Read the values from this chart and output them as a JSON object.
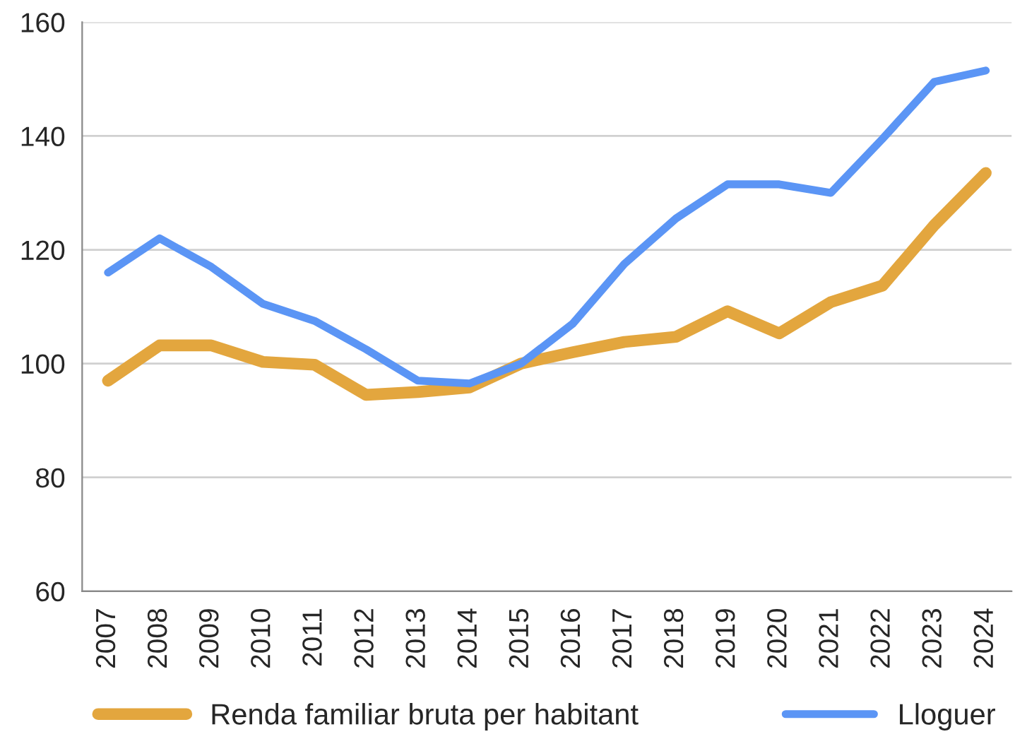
{
  "chart_data": {
    "type": "line",
    "categories": [
      "2007",
      "2008",
      "2009",
      "2010",
      "2011",
      "2012",
      "2013",
      "2014",
      "2015",
      "2016",
      "2017",
      "2018",
      "2019",
      "2020",
      "2021",
      "2022",
      "2023",
      "2024"
    ],
    "series": [
      {
        "name": "Renda familiar bruta per habitant",
        "color": "#e3a63e",
        "values": [
          97,
          103.2,
          103.2,
          100.3,
          99.8,
          94.5,
          95,
          95.8,
          100,
          102,
          103.8,
          104.7,
          109.2,
          105.3,
          110.8,
          113.7,
          124.3,
          133.5
        ]
      },
      {
        "name": "Lloguer",
        "color": "#5b95f5",
        "values": [
          116,
          122,
          117,
          110.5,
          107.5,
          102.5,
          97,
          96.5,
          100,
          107,
          117.5,
          125.5,
          131.5,
          131.5,
          130,
          139.5,
          149.5,
          151.5
        ]
      }
    ],
    "ylim": [
      60,
      160
    ],
    "yticks": [
      60,
      80,
      100,
      120,
      140,
      160
    ],
    "grid": "y",
    "legend": "bottom",
    "line_style": "solid",
    "marker": "none"
  }
}
